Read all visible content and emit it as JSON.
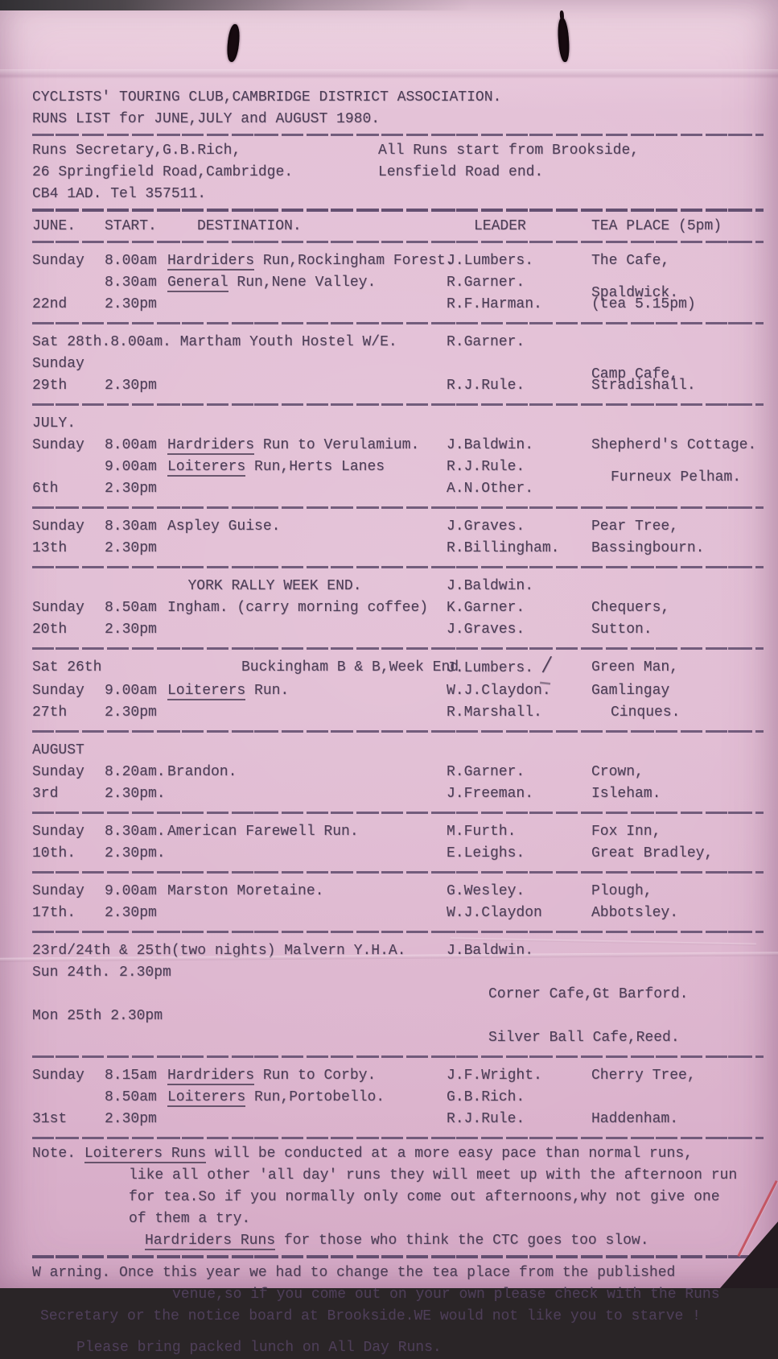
{
  "colors": {
    "paper": "#e2bdd4",
    "ink": "#4e3f58",
    "hole": "#170a10",
    "corner": "#241b20",
    "crease_red": "#c34a55"
  },
  "header": {
    "line1": "CYCLISTS' TOURING CLUB,CAMBRIDGE DISTRICT ASSOCIATION.",
    "line2": "RUNS LIST for JUNE,JULY and AUGUST 1980."
  },
  "contact": {
    "left": [
      "Runs Secretary,G.B.Rich,",
      "26 Springfield Road,Cambridge.",
      "CB4 1AD. Tel 357511."
    ],
    "right": [
      "All Runs start from Brookside,",
      "Lensfield Road end."
    ]
  },
  "columns": {
    "month": "JUNE.",
    "start": "START.",
    "destination": "DESTINATION.",
    "leader": "LEADER",
    "tea": "TEA PLACE (5pm)"
  },
  "sections": [
    {
      "rows": [
        {
          "day": "Sunday",
          "start": "8.00am",
          "dest": [
            [
              "Hardriders",
              true
            ],
            [
              " Run,Rockingham Forest."
            ]
          ],
          "leader": "J.Lumbers.",
          "tea": "The Cafe,"
        },
        {
          "day": "",
          "start": "8.30am",
          "dest": [
            [
              "General",
              true
            ],
            [
              " Run,Nene Valley."
            ]
          ],
          "leader": "R.Garner.",
          "tea": "Spaldwick.",
          "tea_drop": true
        },
        {
          "day": "22nd",
          "start": "2.30pm",
          "leader": "R.F.Harman.",
          "tea": "(tea 5.15pm)"
        }
      ]
    },
    {
      "rows": [
        {
          "wide": "Sat 28th.8.00am. Martham Youth Hostel W/E.",
          "leader": "R.Garner."
        },
        {
          "day": "Sunday",
          "tea": "Camp Cafe,",
          "tea_drop": true
        },
        {
          "day": "29th",
          "start": "2.30pm",
          "leader": "R.J.Rule.",
          "tea": "Stradishall."
        }
      ]
    },
    {
      "rows": [
        {
          "label": "JULY."
        },
        {
          "day": "Sunday",
          "start": "8.00am",
          "dest": [
            [
              "Hardriders",
              true
            ],
            [
              " Run to Verulamium."
            ]
          ],
          "leader": "J.Baldwin.",
          "tea": "Shepherd's Cottage."
        },
        {
          "day": "",
          "start": "9.00am",
          "dest": [
            [
              "Loiterers",
              true
            ],
            [
              " Run,Herts Lanes"
            ]
          ],
          "leader": "R.J.Rule.",
          "tea": "Furneux Pelham.",
          "tea_drop": true,
          "tea_indent": true
        },
        {
          "day": "6th",
          "start": "2.30pm",
          "leader": "A.N.Other."
        }
      ]
    },
    {
      "rows": [
        {
          "day": "Sunday",
          "start": "8.30am",
          "dest": [
            [
              "Aspley Guise."
            ]
          ],
          "leader": "J.Graves.",
          "tea": "Pear Tree,"
        },
        {
          "day": "13th",
          "start": "2.30pm",
          "leader": "R.Billingham.",
          "tea": "Bassingbourn."
        }
      ]
    },
    {
      "rows": [
        {
          "wide": "YORK RALLY WEEK END.",
          "wide_center": true,
          "leader": "J.Baldwin."
        },
        {
          "day": "Sunday",
          "start": "8.50am",
          "dest": [
            [
              "Ingham. (carry morning coffee)"
            ]
          ],
          "leader": "K.Garner.",
          "tea": "Chequers,"
        },
        {
          "day": "20th",
          "start": "2.30pm",
          "leader": "J.Graves.",
          "tea": "Sutton."
        }
      ]
    },
    {
      "rows": [
        {
          "day": "Sat 26th",
          "dest": [
            [
              "Buckingham B & B,Week End"
            ]
          ],
          "dest_indent": true,
          "leader": "J.Lumbers.",
          "mark": true,
          "tea": "Green Man,"
        },
        {
          "day": "Sunday",
          "start": "9.00am",
          "dest": [
            [
              "Loiterers",
              true
            ],
            [
              " Run."
            ]
          ],
          "leader": "W.J.Claydon.",
          "tea": "Gamlingay"
        },
        {
          "day": "27th",
          "start": "2.30pm",
          "leader": "R.Marshall.",
          "tea": "Cinques.",
          "tea_indent": true
        }
      ]
    },
    {
      "rows": [
        {
          "label": "AUGUST"
        },
        {
          "day": "Sunday",
          "start": "8.20am.",
          "dest": [
            [
              "Brandon."
            ]
          ],
          "leader": "R.Garner.",
          "tea": "Crown,"
        },
        {
          "day": "3rd",
          "start": "2.30pm.",
          "leader": "J.Freeman.",
          "tea": "Isleham."
        }
      ]
    },
    {
      "rows": [
        {
          "day": "Sunday",
          "start": "8.30am.",
          "dest": [
            [
              "American Farewell Run."
            ]
          ],
          "leader": "M.Furth.",
          "tea": "Fox Inn,"
        },
        {
          "day": "10th.",
          "start": "2.30pm.",
          "leader": "E.Leighs.",
          "tea": "Great Bradley,"
        }
      ]
    },
    {
      "rows": [
        {
          "day": "Sunday",
          "start": "9.00am",
          "dest": [
            [
              "Marston Moretaine."
            ]
          ],
          "leader": "G.Wesley.",
          "tea": "Plough,"
        },
        {
          "day": "17th.",
          "start": "2.30pm",
          "leader": "W.J.Claydon",
          "tea": "Abbotsley."
        }
      ]
    },
    {
      "rows": [
        {
          "wide": "23rd/24th & 25th(two nights) Malvern Y.H.A.",
          "leader": "J.Baldwin."
        },
        {
          "wide": "Sun 24th. 2.30pm",
          "note": "Corner Cafe,Gt Barford."
        },
        {
          "wide": "Mon 25th 2.30pm",
          "note": "Silver Ball Cafe,Reed."
        }
      ]
    },
    {
      "rows": [
        {
          "day": "Sunday",
          "start": "8.15am",
          "dest": [
            [
              "Hardriders",
              true
            ],
            [
              " Run to Corby."
            ]
          ],
          "leader": "J.F.Wright.",
          "tea": "Cherry Tree,"
        },
        {
          "day": "",
          "start": "8.50am",
          "dest": [
            [
              "Loiterers",
              true
            ],
            [
              " Run,Portobello."
            ]
          ],
          "leader": "G.B.Rich."
        },
        {
          "day": "31st",
          "start": "2.30pm",
          "leader": "R.J.Rule.",
          "tea": "Haddenham."
        }
      ]
    }
  ],
  "note": {
    "lines": [
      [
        [
          "Note. "
        ],
        [
          "Loiterers Runs",
          true
        ],
        [
          " will be conducted at a more easy pace than normal runs,"
        ]
      ],
      [
        [
          "like all other 'all day' runs they will meet up with the afternoon run"
        ]
      ],
      [
        [
          "for tea.So if you normally only come out afternoons,why not give one"
        ]
      ],
      [
        [
          "of them a try."
        ]
      ],
      [
        [
          "Hardriders Runs",
          true
        ],
        [
          " for those who think the CTC goes too slow."
        ]
      ]
    ]
  },
  "warning": {
    "lines": [
      [
        [
          "W arning. Once this year we had to change the tea place from the published"
        ]
      ],
      [
        [
          "venue,so if you come out on your own please check with the Runs"
        ]
      ],
      [
        [
          "Secretary or the notice board at Brookside.WE would not like you to starve !"
        ]
      ]
    ]
  },
  "footer": "Please bring packed lunch on All Day Runs."
}
